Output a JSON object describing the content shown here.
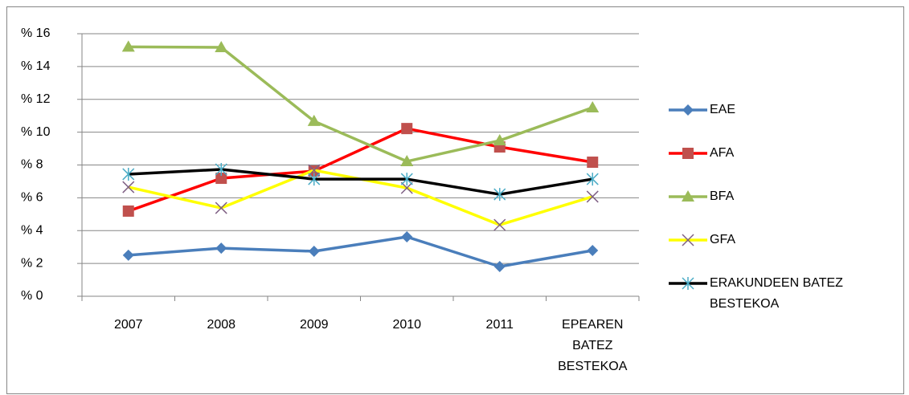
{
  "chart_data": {
    "type": "line",
    "categories": [
      "2007",
      "2008",
      "2009",
      "2010",
      "2011",
      "EPEAREN BATEZ BESTEKOA"
    ],
    "series": [
      {
        "name": "EAE",
        "color": "#4a7ebb",
        "marker": "diamond",
        "marker_color": "#4a7ebb",
        "values": [
          2.5,
          2.93,
          2.74,
          3.62,
          1.81,
          2.79
        ]
      },
      {
        "name": "AFA",
        "color": "#ff0000",
        "marker": "square",
        "marker_color": "#c0504d",
        "values": [
          5.19,
          7.19,
          7.63,
          10.22,
          9.1,
          8.17
        ]
      },
      {
        "name": "BFA",
        "color": "#9bbb59",
        "marker": "triangle",
        "marker_color": "#9bbb59",
        "values": [
          15.2,
          15.17,
          10.67,
          8.22,
          9.49,
          11.5
        ]
      },
      {
        "name": "GFA",
        "color": "#ffff00",
        "marker": "x",
        "marker_color": "#7f6084",
        "values": [
          6.65,
          5.38,
          7.68,
          6.6,
          4.35,
          6.07
        ]
      },
      {
        "name": "ERAKUNDEEN BATEZ BESTEKOA",
        "color": "#000000",
        "marker": "star",
        "marker_color": "#4bacc6",
        "values": [
          7.44,
          7.73,
          7.14,
          7.14,
          6.21,
          7.14
        ]
      }
    ],
    "ylim": [
      0,
      16
    ],
    "yticks": [
      {
        "value": 0,
        "label": "% 0"
      },
      {
        "value": 2,
        "label": "% 2"
      },
      {
        "value": 4,
        "label": "% 4"
      },
      {
        "value": 6,
        "label": "% 6"
      },
      {
        "value": 8,
        "label": "% 8"
      },
      {
        "value": 10,
        "label": "% 10"
      },
      {
        "value": 12,
        "label": "% 12"
      },
      {
        "value": 14,
        "label": "% 14"
      },
      {
        "value": 16,
        "label": "% 16"
      }
    ],
    "grid": true,
    "legend": "right"
  }
}
